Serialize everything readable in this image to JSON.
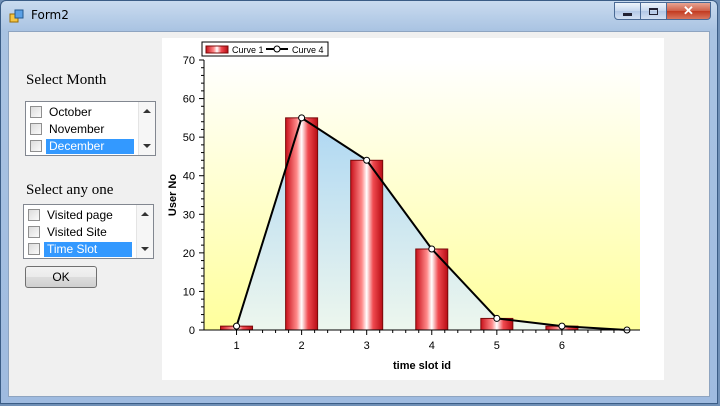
{
  "window": {
    "title": "Form2",
    "controls": {
      "minimize": "minimize",
      "maximize": "maximize",
      "close": "close"
    }
  },
  "month_section": {
    "label": "Select Month",
    "items": [
      {
        "label": "October",
        "checked": false,
        "selected": false
      },
      {
        "label": "November",
        "checked": false,
        "selected": false
      },
      {
        "label": "December",
        "checked": false,
        "selected": true
      }
    ]
  },
  "choice_section": {
    "label": "Select any one",
    "items": [
      {
        "label": "Visited page",
        "checked": false,
        "selected": false
      },
      {
        "label": "Visited Site",
        "checked": false,
        "selected": false
      },
      {
        "label": "Time Slot",
        "checked": false,
        "selected": true
      }
    ]
  },
  "ok_button": {
    "label": "OK"
  },
  "colors": {
    "selection": "#3399ff",
    "bar": "#e0202a",
    "curve": "#000000",
    "plot_top": "#ffffff",
    "plot_bottom": "#ffff9c"
  },
  "chart_data": {
    "type": "bar",
    "xlabel": "time  slot  id",
    "ylabel": "User No",
    "ylim": [
      0,
      70
    ],
    "yticks": [
      0,
      10,
      20,
      30,
      40,
      50,
      60,
      70
    ],
    "xticks": [
      1,
      2,
      3,
      4,
      5,
      6
    ],
    "legend_position": "top-left",
    "series": [
      {
        "name": "Curve 1",
        "kind": "bar",
        "x": [
          1,
          2,
          3,
          4,
          5,
          6
        ],
        "values": [
          1,
          55,
          44,
          21,
          3,
          1
        ]
      },
      {
        "name": "Curve 4",
        "kind": "line",
        "x": [
          1,
          2,
          3,
          4,
          5,
          6,
          7
        ],
        "values": [
          1,
          55,
          44,
          21,
          3,
          1,
          0
        ]
      }
    ]
  }
}
